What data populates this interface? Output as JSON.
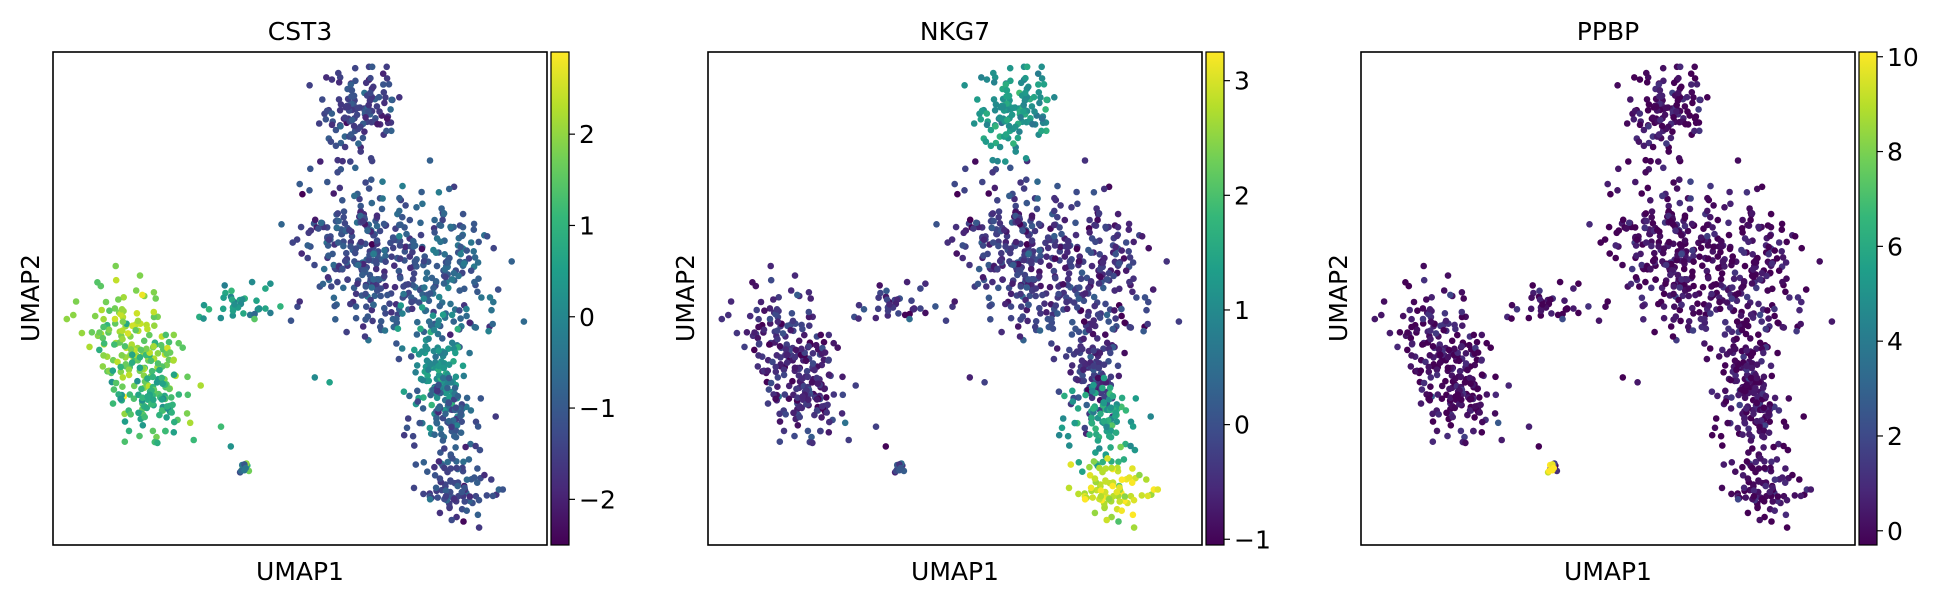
{
  "figure": {
    "background": "#ffffff",
    "colormap": "viridis"
  },
  "chart_data": [
    {
      "type": "scatter",
      "title": "CST3",
      "xlabel": "UMAP1",
      "ylabel": "UMAP2",
      "grid": false,
      "colorbar": {
        "min": -2.5,
        "max": 2.9,
        "ticks": [
          2,
          1,
          0,
          -1,
          -2
        ],
        "tick_labels": [
          "2",
          "1",
          "0",
          "−1",
          "−2"
        ]
      },
      "cluster_values": {
        "c1": -1.2,
        "c2": -0.8,
        "c3": 0.2,
        "c4": 1.9,
        "c5": 1.0,
        "c6": 0.5,
        "c7": 1.2,
        "c8": -1.0,
        "c9": -1.3,
        "c10": -1.4,
        "c11": -0.9
      }
    },
    {
      "type": "scatter",
      "title": "NKG7",
      "xlabel": "UMAP1",
      "ylabel": "UMAP2",
      "grid": false,
      "colorbar": {
        "min": -1.05,
        "max": 3.25,
        "ticks": [
          3,
          2,
          1,
          0,
          -1
        ],
        "tick_labels": [
          "3",
          "2",
          "1",
          "0",
          "−1"
        ]
      },
      "cluster_values": {
        "c1": -0.3,
        "c2": -0.4,
        "c3": -0.4,
        "c4": -0.5,
        "c5": -0.4,
        "c6": -0.3,
        "c7": -0.2,
        "c8": 1.4,
        "c9": 2.9,
        "c10": 1.2,
        "c11": -0.3
      }
    },
    {
      "type": "scatter",
      "title": "PPBP",
      "xlabel": "UMAP1",
      "ylabel": "UMAP2",
      "grid": false,
      "colorbar": {
        "min": -0.3,
        "max": 10.1,
        "ticks": [
          10,
          8,
          6,
          4,
          2,
          0
        ],
        "tick_labels": [
          "10",
          "8",
          "6",
          "4",
          "2",
          "0"
        ]
      },
      "cluster_values": {
        "c1": 0.1,
        "c2": 0.1,
        "c3": 0.1,
        "c4": 0.2,
        "c5": 0.2,
        "c6": 0.2,
        "c7": 0.1,
        "c8": 0.1,
        "c9": 0.1,
        "c10": 0.1,
        "c11": 10.0
      }
    }
  ]
}
